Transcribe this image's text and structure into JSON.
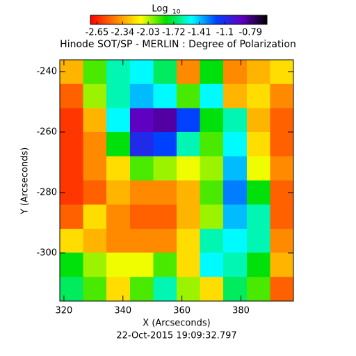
{
  "chart_data": {
    "type": "heatmap",
    "title": "Hinode SOT/SP - MERLIN : Degree of Polarization",
    "xlabel": "X (Arcseconds)",
    "ylabel": "Y (Arcseconds)",
    "footer": "22-Oct-2015 19:09:32.797",
    "colorbar_label": "Log",
    "colorbar_label_sub": "10",
    "xlim": [
      318.6,
      397.8
    ],
    "ylim": [
      -315.9,
      -236.1
    ],
    "xticks": [
      320,
      340,
      360,
      380
    ],
    "yticks": [
      -240,
      -260,
      -280,
      -300
    ],
    "clim": [
      -2.73,
      -0.59
    ],
    "cticks": [
      -2.65,
      -2.34,
      -2.03,
      -1.72,
      -1.41,
      -1.1,
      -0.79
    ],
    "colormap": [
      "#ff0000",
      "#ff8000",
      "#ffff00",
      "#00e000",
      "#00ffff",
      "#0040ff",
      "#6000c0",
      "#000000"
    ],
    "x_edges": [
      318.6,
      326.5,
      334.4,
      342.4,
      350.3,
      358.2,
      366.1,
      374.0,
      382.0,
      389.9,
      397.8
    ],
    "y_edges": [
      -236.1,
      -244.1,
      -252.1,
      -260.0,
      -268.0,
      -276.0,
      -284.0,
      -292.0,
      -299.9,
      -307.9,
      -315.9
    ],
    "z": [
      [
        -2.3,
        -1.9,
        -1.6,
        -1.5,
        -1.7,
        -2.4,
        -1.8,
        -2.4,
        -2.3,
        -2.2
      ],
      [
        -2.5,
        -2.0,
        -1.6,
        -1.4,
        -1.5,
        -1.9,
        -1.5,
        -2.3,
        -2.2,
        -2.4
      ],
      [
        -2.6,
        -2.3,
        -1.5,
        -0.9,
        -0.85,
        -1.2,
        -1.8,
        -1.6,
        -2.3,
        -2.5
      ],
      [
        -2.6,
        -2.4,
        -1.8,
        -1.1,
        -1.2,
        -1.6,
        -1.9,
        -1.5,
        -2.2,
        -2.5
      ],
      [
        -2.6,
        -2.4,
        -2.2,
        -1.9,
        -2.0,
        -2.1,
        -2.0,
        -1.4,
        -2.1,
        -2.4
      ],
      [
        -2.6,
        -2.5,
        -2.3,
        -2.4,
        -2.4,
        -2.3,
        -1.9,
        -1.3,
        -1.8,
        -2.5
      ],
      [
        -2.5,
        -2.2,
        -2.4,
        -2.5,
        -2.5,
        -2.3,
        -2.0,
        -1.4,
        -1.6,
        -2.5
      ],
      [
        -2.2,
        -2.3,
        -2.4,
        -2.4,
        -2.4,
        -2.2,
        -1.6,
        -1.5,
        -1.6,
        -2.4
      ],
      [
        -1.8,
        -2.0,
        -2.1,
        -2.1,
        -1.9,
        -2.2,
        -1.5,
        -1.6,
        -1.8,
        -2.3
      ],
      [
        -1.7,
        -1.9,
        -2.2,
        -1.9,
        -1.6,
        -2.0,
        -2.2,
        -1.7,
        -1.9,
        -2.5
      ]
    ]
  }
}
